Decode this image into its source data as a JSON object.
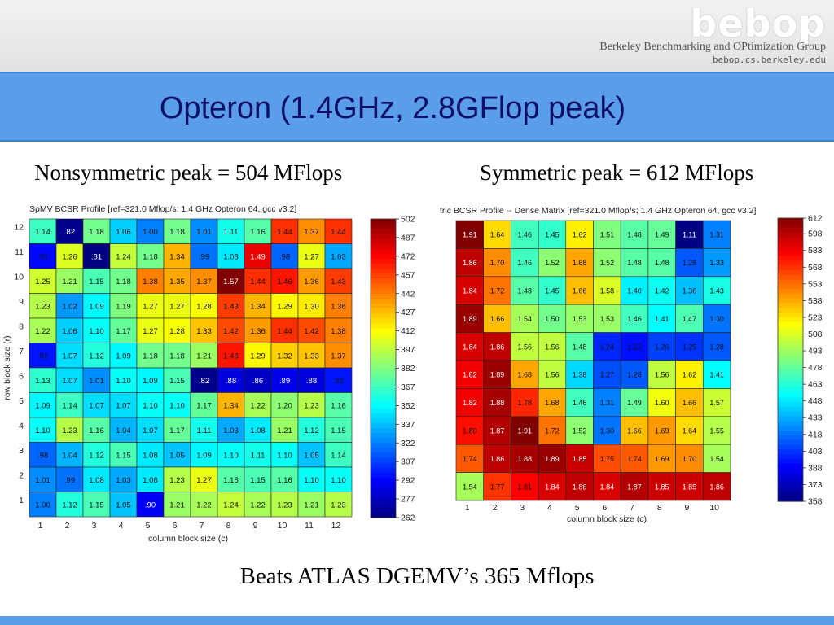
{
  "header": {
    "logo": "bebop",
    "org_name": "Berkeley Benchmarking and OPtimization Group",
    "org_url": "bebop.cs.berkeley.edu"
  },
  "slide": {
    "title": "Opteron (1.4GHz, 2.8GFlop peak)",
    "subtitle_left": "Nonsymmetric peak = 504 MFlops",
    "subtitle_right": "Symmetric peak = 612 MFlops",
    "footer": "Beats ATLAS DGEMV’s 365 Mflops"
  },
  "chart_data": [
    {
      "type": "heatmap",
      "title": "SpMV BCSR Profile [ref=321.0 Mflop/s; 1.4 GHz Opteron 64, gcc v3.2]",
      "xlabel": "column block size (c)",
      "ylabel": "row block size (r)",
      "x": [
        1,
        2,
        3,
        4,
        5,
        6,
        7,
        8,
        9,
        10,
        11,
        12
      ],
      "y": [
        12,
        11,
        10,
        9,
        8,
        7,
        6,
        5,
        4,
        3,
        2,
        1
      ],
      "values": [
        [
          "1.14",
          ".82",
          "1.18",
          "1.06",
          "1.00",
          "1.18",
          "1.01",
          "1.11",
          "1.16",
          "1.44",
          "1.37",
          "1.44"
        ],
        [
          ".91",
          "1.26",
          ".81",
          "1.24",
          "1.18",
          "1.34",
          ".99",
          "1.08",
          "1.49",
          ".98",
          "1.27",
          "1.03"
        ],
        [
          "1.25",
          "1.21",
          "1.15",
          "1.18",
          "1.38",
          "1.35",
          "1.37",
          "1.57",
          "1.44",
          "1.46",
          "1.36",
          "1.43"
        ],
        [
          "1.23",
          "1.02",
          "1.09",
          "1.19",
          "1.27",
          "1.27",
          "1.28",
          "1.43",
          "1.34",
          "1.29",
          "1.30",
          "1.38"
        ],
        [
          "1.22",
          "1.06",
          "1.10",
          "1.17",
          "1.27",
          "1.28",
          "1.33",
          "1.42",
          "1.36",
          "1.44",
          "1.42",
          "1.38"
        ],
        [
          ".92",
          "1.07",
          "1.12",
          "1.09",
          "1.18",
          "1.18",
          "1.21",
          "1.46",
          "1.29",
          "1.32",
          "1.33",
          "1.37"
        ],
        [
          "1.13",
          "1.07",
          "1.01",
          "1.10",
          "1.09",
          "1.15",
          ".82",
          ".88",
          ".86",
          ".89",
          ".88",
          ".92"
        ],
        [
          "1.09",
          "1.14",
          "1.07",
          "1.07",
          "1.10",
          "1.10",
          "1.17",
          "1.34",
          "1.22",
          "1.20",
          "1.23",
          "1.16"
        ],
        [
          "1.10",
          "1.23",
          "1.16",
          "1.04",
          "1.07",
          "1.17",
          "1.11",
          "1.03",
          "1.08",
          "1.21",
          "1.12",
          "1.15"
        ],
        [
          ".98",
          "1.04",
          "1.12",
          "1.15",
          "1.08",
          "1.05",
          "1.09",
          "1.10",
          "1.11",
          "1.10",
          "1.05",
          "1.14"
        ],
        [
          "1.01",
          ".99",
          "1.08",
          "1.03",
          "1.08",
          "1.23",
          "1.27",
          "1.16",
          "1.15",
          "1.16",
          "1.10",
          "1.10"
        ],
        [
          "1.00",
          "1.12",
          "1.15",
          "1.05",
          ".90",
          "1.21",
          "1.22",
          "1.24",
          "1.22",
          "1.23",
          "1.21",
          "1.23"
        ]
      ],
      "colorbar": {
        "min": 262,
        "max": 502,
        "ticks": [
          "502",
          "487",
          "472",
          "457",
          "442",
          "427",
          "412",
          "397",
          "382",
          "367",
          "352",
          "337",
          "322",
          "307",
          "292",
          "277",
          "262"
        ]
      }
    },
    {
      "type": "heatmap",
      "title": "tric BCSR Profile -- Dense Matrix [ref=321.0 Mflop/s; 1.4 GHz Opteron 64, gcc v3.2]",
      "xlabel": "column block size (c)",
      "ylabel": "",
      "x": [
        1,
        2,
        3,
        4,
        5,
        6,
        7,
        8,
        9,
        10
      ],
      "y": [
        10,
        9,
        8,
        7,
        6,
        5,
        4,
        3,
        2,
        1
      ],
      "values": [
        [
          "1.91",
          "1.64",
          "1.46",
          "1.45",
          "1.62",
          "1.51",
          "1.48",
          "1.49",
          "1.11",
          "1.31"
        ],
        [
          "1.86",
          "1.70",
          "1.46",
          "1.52",
          "1.68",
          "1.52",
          "1.48",
          "1.48",
          "1.28",
          "1.33"
        ],
        [
          "1.84",
          "1.72",
          "1.48",
          "1.45",
          "1.66",
          "1.58",
          "1.40",
          "1.42",
          "1.36",
          "1.43"
        ],
        [
          "1.89",
          "1.66",
          "1.54",
          "1.50",
          "1.53",
          "1.53",
          "1.46",
          "1.41",
          "1.47",
          "1.30"
        ],
        [
          "1.84",
          "1.86",
          "1.56",
          "1.56",
          "1.48",
          "1.24",
          "1.22",
          "1.26",
          "1.25",
          "1.28"
        ],
        [
          "1.82",
          "1.89",
          "1.68",
          "1.56",
          "1.38",
          "1.27",
          "1.28",
          "1.56",
          "1.62",
          "1.41"
        ],
        [
          "1.82",
          "1.88",
          "1.78",
          "1.68",
          "1.46",
          "1.31",
          "1.49",
          "1.60",
          "1.66",
          "1.57"
        ],
        [
          "1.80",
          "1.87",
          "1.91",
          "1.72",
          "1.52",
          "1.30",
          "1.66",
          "1.69",
          "1.64",
          "1.55"
        ],
        [
          "1.74",
          "1.86",
          "1.88",
          "1.89",
          "1.85",
          "1.75",
          "1.74",
          "1.69",
          "1.70",
          "1.54"
        ],
        [
          "1.54",
          "1.77",
          "1.81",
          "1.84",
          "1.86",
          "1.84",
          "1.87",
          "1.85",
          "1.85",
          "1.86"
        ]
      ],
      "colorbar": {
        "min": 358,
        "max": 612,
        "ticks": [
          "612",
          "598",
          "583",
          "568",
          "553",
          "538",
          "523",
          "508",
          "493",
          "478",
          "463",
          "448",
          "433",
          "418",
          "403",
          "388",
          "373",
          "358"
        ]
      }
    }
  ]
}
